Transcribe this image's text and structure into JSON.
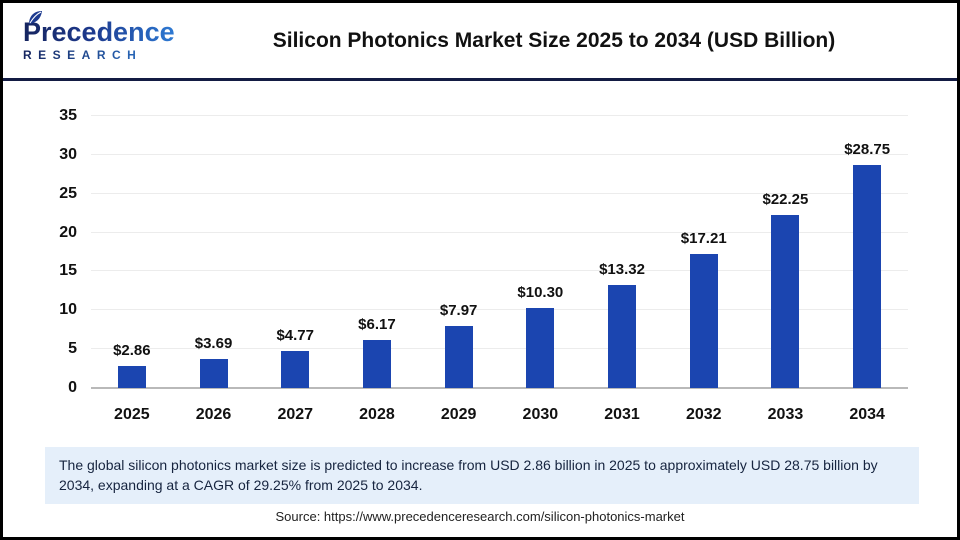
{
  "logo": {
    "line1": "Precedence",
    "line2": "RESEARCH"
  },
  "header": {
    "title": "Silicon Photonics Market Size 2025 to 2034 (USD Billion)"
  },
  "chart_data": {
    "type": "bar",
    "title": "Silicon Photonics Market Size 2025 to 2034 (USD Billion)",
    "categories": [
      "2025",
      "2026",
      "2027",
      "2028",
      "2029",
      "2030",
      "2031",
      "2032",
      "2033",
      "2034"
    ],
    "values": [
      2.86,
      3.69,
      4.77,
      6.17,
      7.97,
      10.3,
      13.32,
      17.21,
      22.25,
      28.75
    ],
    "value_labels": [
      "$2.86",
      "$3.69",
      "$4.77",
      "$6.17",
      "$7.97",
      "$10.30",
      "$13.32",
      "$17.21",
      "$22.25",
      "$28.75"
    ],
    "xlabel": "",
    "ylabel": "",
    "ylim": [
      0,
      35
    ],
    "yticks": [
      0,
      5,
      10,
      15,
      20,
      25,
      30,
      35
    ],
    "grid": "on",
    "legend": "none",
    "bar_color": "#1b45b0"
  },
  "note": {
    "text": "The global silicon photonics market size is predicted to increase from USD 2.86 billion in 2025 to approximately USD 28.75 billion by 2034, expanding at a CAGR of 29.25% from 2025 to 2034."
  },
  "source": {
    "text": "Source: https://www.precedenceresearch.com/silicon-photonics-market"
  },
  "colors": {
    "bar": "#1b45b0",
    "header_divider": "#131b43",
    "note_background": "#e5effa",
    "note_text": "#16243f",
    "baseline": "#b9b9b9",
    "gridline": "#ececec",
    "logo_gradient_start": "#16255f",
    "logo_gradient_end": "#2f7fd9"
  }
}
